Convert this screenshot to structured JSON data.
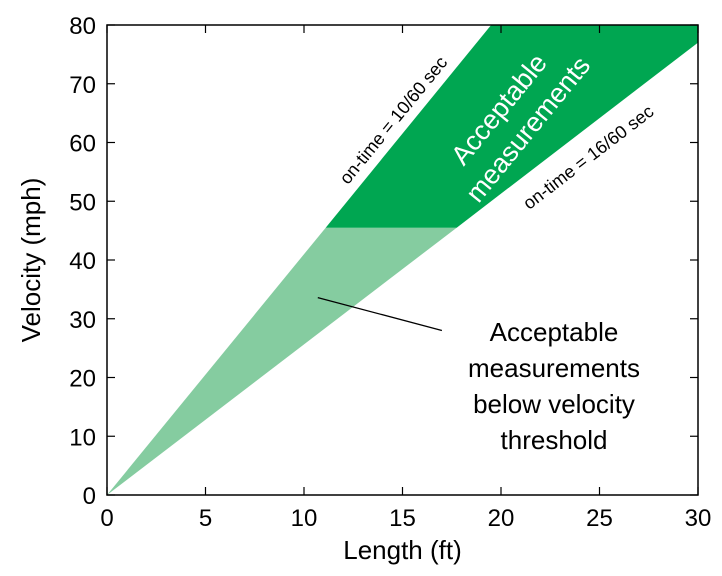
{
  "chart_data": {
    "type": "area",
    "xlabel": "Length (ft)",
    "ylabel": "Velocity (mph)",
    "xlim": [
      0,
      30
    ],
    "ylim": [
      0,
      80
    ],
    "xticks": [
      0,
      5,
      10,
      15,
      20,
      25,
      30
    ],
    "yticks": [
      0,
      10,
      20,
      30,
      40,
      50,
      60,
      70,
      80
    ],
    "grid": false,
    "velocity_threshold": 45.5,
    "lines": [
      {
        "label": "on-time = 10/60 sec",
        "x": [
          0,
          19.5
        ],
        "y": [
          0,
          80
        ]
      },
      {
        "label": "on-time = 16/60 sec",
        "x": [
          0,
          30
        ],
        "y": [
          0,
          77
        ]
      }
    ],
    "regions": [
      {
        "name": "Acceptable measurements",
        "label_lines": [
          "Acceptable",
          "measurements"
        ],
        "color": "#00a651",
        "x": [
          11.1,
          19.5,
          30,
          30,
          17.75
        ],
        "y": [
          45.5,
          80,
          80,
          77,
          45.5
        ]
      },
      {
        "name": "Acceptable measurements below velocity threshold",
        "label_lines": [
          "Acceptable",
          "measurements",
          "below velocity",
          "threshold"
        ],
        "color": "#85cca0",
        "x": [
          0,
          11.1,
          17.75
        ],
        "y": [
          0,
          45.5,
          45.5
        ]
      }
    ],
    "annotation_pointer": {
      "from": [
        17,
        28
      ],
      "to": [
        10.7,
        33.6
      ]
    }
  }
}
